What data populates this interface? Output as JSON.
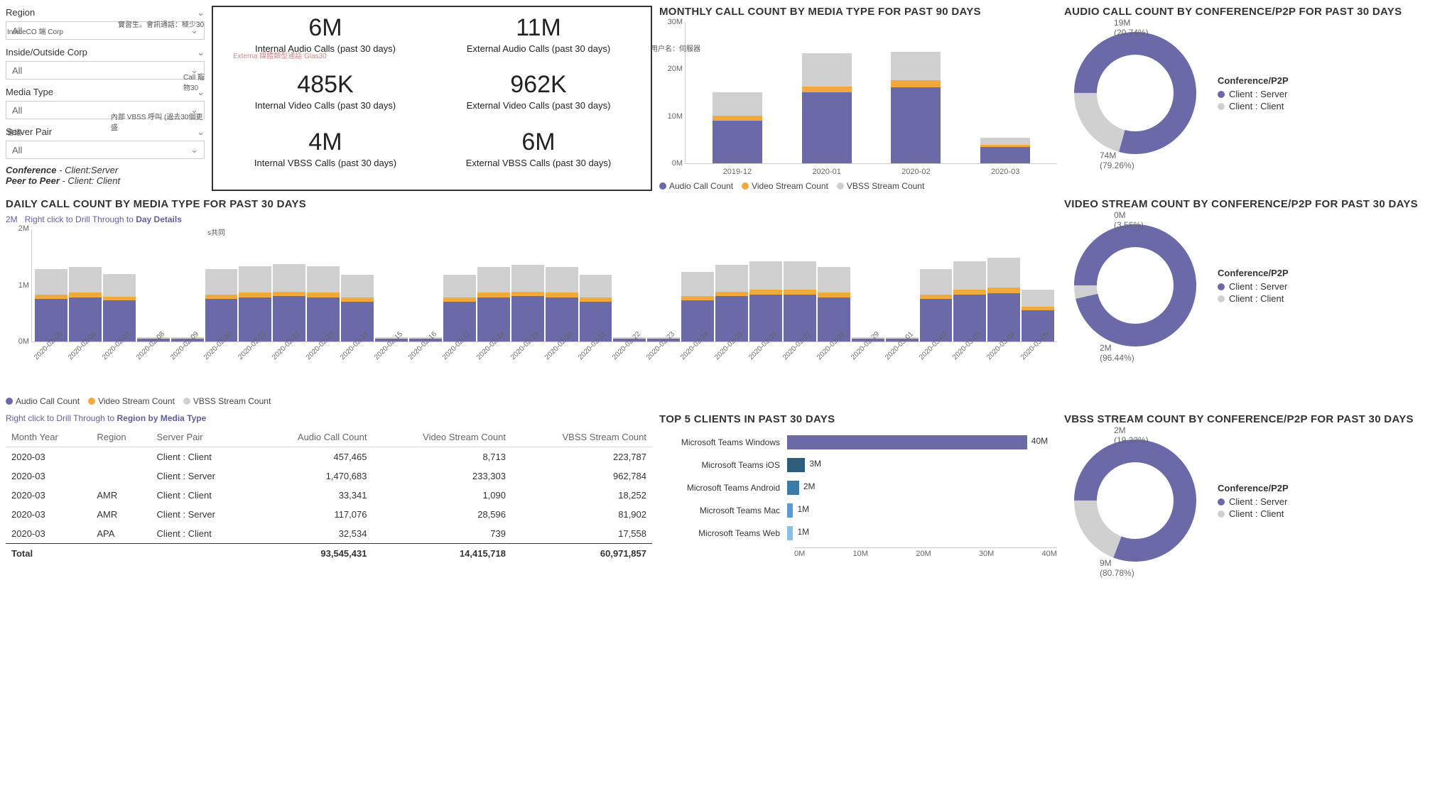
{
  "colors": {
    "audio": "#6c69a8",
    "video": "#f2a93b",
    "vbss": "#d0d0d0",
    "donut_primary": "#6c69a8",
    "donut_secondary": "#d0d0d0",
    "hbar1": "#6c69a8",
    "hbar2": "#2d5d7b",
    "hbar3": "#3a7ca5",
    "hbar4": "#5a9bd4",
    "hbar5": "#8bc0e6"
  },
  "filters": {
    "region": {
      "label": "Region",
      "value": "All"
    },
    "inside": {
      "label": "Inside/Outside Corp",
      "value": "All"
    },
    "media": {
      "label": "Media Type",
      "value": "All"
    },
    "server": {
      "label": "Server Pair",
      "value": "All"
    },
    "note_conf": "Conference",
    "note_conf_val": " - Client:Server",
    "note_p2p": "Peer to Peer",
    "note_p2p_val": " - Client: Client"
  },
  "overlay_annotations": {
    "a1": "InsideCO 端 Corp",
    "a2": "實習生。會訊通話：極少30",
    "a3": "Externa 媒體類型通話 Glas30",
    "a4": "Call 寵物30",
    "a5": "內部 VBSS 呼叫 (過去30個更盛",
    "a6": "用户名：伺服器",
    "a7": "會議",
    "a8": "s共同"
  },
  "kpis": [
    {
      "value": "6M",
      "label": "Internal Audio Calls (past 30 days)"
    },
    {
      "value": "11M",
      "label": "External Audio Calls (past 30 days)"
    },
    {
      "value": "485K",
      "label": "Internal Video Calls (past 30 days)"
    },
    {
      "value": "962K",
      "label": "External Video Calls (past 30 days)"
    },
    {
      "value": "4M",
      "label": "Internal VBSS Calls (past 30 days)"
    },
    {
      "value": "6M",
      "label": "External VBSS Calls (past 30 days)"
    }
  ],
  "monthly": {
    "title": "MONTHLY CALL COUNT BY MEDIA TYPE FOR PAST 90 DAYS",
    "y_max": 30,
    "y_ticks": [
      "0M",
      "10M",
      "20M",
      "30M"
    ],
    "categories": [
      "2019-12",
      "2020-01",
      "2020-02",
      "2020-03"
    ],
    "series_audio": [
      9,
      15,
      16,
      3.5
    ],
    "series_video": [
      1,
      1.2,
      1.5,
      0.4
    ],
    "series_vbss": [
      5,
      7,
      6,
      1.5
    ],
    "legend": [
      "Audio Call Count",
      "Video Stream Count",
      "VBSS Stream Count"
    ]
  },
  "donut_audio": {
    "title": "AUDIO CALL COUNT BY CONFERENCE/P2P FOR PAST 30 DAYS",
    "legend_title": "Conference/P2P",
    "items": [
      {
        "label": "Client : Server",
        "pct": 79.26,
        "value": "74M"
      },
      {
        "label": "Client : Client",
        "pct": 20.74,
        "value": "19M"
      }
    ]
  },
  "donut_video": {
    "title": "VIDEO STREAM COUNT BY CONFERENCE/P2P FOR PAST 30 DAYS",
    "legend_title": "Conference/P2P",
    "items": [
      {
        "label": "Client : Server",
        "pct": 96.44,
        "value": "2M"
      },
      {
        "label": "Client : Client",
        "pct": 3.56,
        "value": "0M"
      }
    ]
  },
  "donut_vbss": {
    "title": "VBSS STREAM COUNT BY CONFERENCE/P2P FOR PAST 30 DAYS",
    "legend_title": "Conference/P2P",
    "items": [
      {
        "label": "Client : Server",
        "pct": 80.78,
        "value": "9M"
      },
      {
        "label": "Client : Client",
        "pct": 19.22,
        "value": "2M"
      }
    ]
  },
  "daily": {
    "title": "DAILY CALL COUNT BY MEDIA TYPE FOR PAST 30 DAYS",
    "subtitle_prefix": "Right click to Drill Through to ",
    "subtitle_link": "Day Details",
    "y_max": 2,
    "y_ticks": [
      "0M",
      "1M",
      "2M"
    ],
    "dates": [
      "2020-02-05",
      "2020-02-06",
      "2020-02-07",
      "2020-02-08",
      "2020-02-09",
      "2020-02-10",
      "2020-02-11",
      "2020-02-12",
      "2020-02-13",
      "2020-02-14",
      "2020-02-15",
      "2020-02-16",
      "2020-02-17",
      "2020-02-18",
      "2020-02-19",
      "2020-02-20",
      "2020-02-21",
      "2020-02-22",
      "2020-02-23",
      "2020-02-24",
      "2020-02-25",
      "2020-02-26",
      "2020-02-27",
      "2020-02-28",
      "2020-02-29",
      "2020-03-01",
      "2020-03-02",
      "2020-03-03",
      "2020-03-04",
      "2020-03-05"
    ],
    "audio": [
      0.75,
      0.78,
      0.72,
      0.05,
      0.05,
      0.75,
      0.78,
      0.8,
      0.78,
      0.7,
      0.05,
      0.05,
      0.7,
      0.78,
      0.8,
      0.78,
      0.7,
      0.05,
      0.05,
      0.72,
      0.8,
      0.82,
      0.82,
      0.78,
      0.05,
      0.05,
      0.75,
      0.82,
      0.85,
      0.55
    ],
    "video": [
      0.08,
      0.08,
      0.07,
      0.0,
      0.0,
      0.08,
      0.08,
      0.08,
      0.08,
      0.07,
      0.0,
      0.0,
      0.07,
      0.08,
      0.08,
      0.08,
      0.07,
      0.0,
      0.0,
      0.08,
      0.08,
      0.09,
      0.09,
      0.08,
      0.0,
      0.0,
      0.08,
      0.09,
      0.1,
      0.06
    ],
    "vbss": [
      0.45,
      0.45,
      0.4,
      0.02,
      0.02,
      0.45,
      0.47,
      0.48,
      0.47,
      0.4,
      0.02,
      0.02,
      0.4,
      0.45,
      0.47,
      0.45,
      0.4,
      0.02,
      0.02,
      0.42,
      0.47,
      0.5,
      0.5,
      0.45,
      0.02,
      0.02,
      0.45,
      0.5,
      0.52,
      0.3
    ],
    "legend": [
      "Audio Call Count",
      "Video Stream Count",
      "VBSS Stream Count"
    ]
  },
  "table": {
    "subtitle_prefix": "Right click to Drill Through to ",
    "subtitle_link": "Region by Media Type",
    "columns": [
      "Month Year",
      "Region",
      "Server Pair",
      "Audio Call Count",
      "Video Stream Count",
      "VBSS Stream Count"
    ],
    "rows": [
      [
        "2020-03",
        "",
        "Client : Client",
        "457,465",
        "8,713",
        "223,787"
      ],
      [
        "2020-03",
        "",
        "Client : Server",
        "1,470,683",
        "233,303",
        "962,784"
      ],
      [
        "2020-03",
        "AMR",
        "Client : Client",
        "33,341",
        "1,090",
        "18,252"
      ],
      [
        "2020-03",
        "AMR",
        "Client : Server",
        "117,076",
        "28,596",
        "81,902"
      ],
      [
        "2020-03",
        "APA",
        "Client : Client",
        "32,534",
        "739",
        "17,558"
      ]
    ],
    "total_label": "Total",
    "totals": [
      "93,545,431",
      "14,415,718",
      "60,971,857"
    ]
  },
  "clients": {
    "title": "TOP 5 CLIENTS IN PAST 30 DAYS",
    "max": 45,
    "x_ticks": [
      "0M",
      "10M",
      "20M",
      "30M",
      "40M"
    ],
    "rows": [
      {
        "label": "Microsoft Teams Windows",
        "value": 40,
        "display": "40M",
        "color_key": "hbar1"
      },
      {
        "label": "Microsoft Teams iOS",
        "value": 3,
        "display": "3M",
        "color_key": "hbar2"
      },
      {
        "label": "Microsoft Teams Android",
        "value": 2,
        "display": "2M",
        "color_key": "hbar3"
      },
      {
        "label": "Microsoft Teams Mac",
        "value": 1,
        "display": "1M",
        "color_key": "hbar4"
      },
      {
        "label": "Microsoft Teams Web",
        "value": 1,
        "display": "1M",
        "color_key": "hbar5"
      }
    ]
  }
}
